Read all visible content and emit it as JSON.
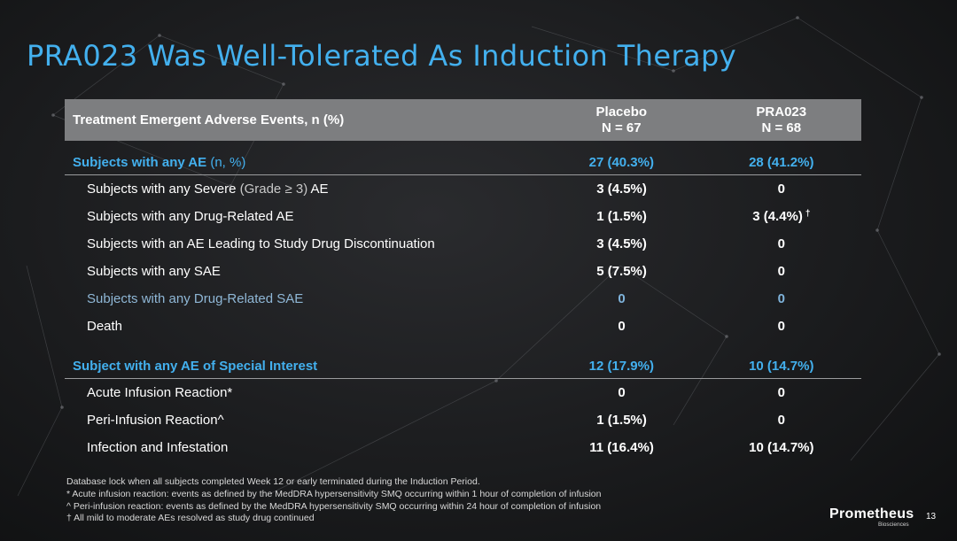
{
  "title": "PRA023 Was Well-Tolerated As Induction Therapy",
  "table": {
    "header": {
      "col1": "Treatment Emergent Adverse Events, n (%)",
      "col2_line1": "Placebo",
      "col2_line2": "N = 67",
      "col3_line1": "PRA023",
      "col3_line2": "N = 68"
    },
    "section1": {
      "label_bold": "Subjects with any AE",
      "label_rest": " (n, %)",
      "placebo": "27 (40.3%)",
      "pra023": "28 (41.2%)"
    },
    "section1_rows": [
      {
        "label_a": "Subjects with any Severe ",
        "label_b": "(Grade ≥ 3)",
        "label_c": " AE",
        "placebo": "3 (4.5%)",
        "pra023": "0"
      },
      {
        "label": "Subjects with any Drug-Related AE",
        "placebo": "1 (1.5%)",
        "pra023": "3 (4.4%)",
        "pra023_mark": "†"
      },
      {
        "label": "Subjects with an AE Leading to Study Drug Discontinuation",
        "placebo": "3 (4.5%)",
        "pra023": "0"
      },
      {
        "label": "Subjects with any SAE",
        "placebo": "5 (7.5%)",
        "pra023": "0"
      },
      {
        "label": "Subjects with any Drug-Related SAE",
        "placebo": "0",
        "pra023": "0"
      },
      {
        "label": "Death",
        "placebo": "0",
        "pra023": "0"
      }
    ],
    "section2": {
      "label": "Subject with any AE of Special Interest",
      "placebo": "12 (17.9%)",
      "pra023": "10 (14.7%)"
    },
    "section2_rows": [
      {
        "label": "Acute Infusion Reaction*",
        "placebo": "0",
        "pra023": "0"
      },
      {
        "label": "Peri-Infusion Reaction^",
        "placebo": "1 (1.5%)",
        "pra023": "0"
      },
      {
        "label": "Infection and Infestation",
        "placebo": "11 (16.4%)",
        "pra023": "10 (14.7%)"
      }
    ]
  },
  "footnotes": [
    "Database lock when all subjects completed Week 12 or early terminated during the Induction Period.",
    "* Acute infusion reaction: events as defined by the MedDRA hypersensitivity SMQ occurring within 1 hour of completion of infusion",
    "^ Peri-infusion reaction: events as defined by the MedDRA hypersensitivity SMQ occurring within 24 hour of completion of infusion",
    "† All mild to moderate AEs resolved as study drug continued"
  ],
  "brand": {
    "name": "Prometheus",
    "sub": "Biosciences"
  },
  "page_number": "13",
  "colors": {
    "accent": "#43b0ee",
    "header_bg": "#7d7e80",
    "background": "#1e1f21"
  }
}
